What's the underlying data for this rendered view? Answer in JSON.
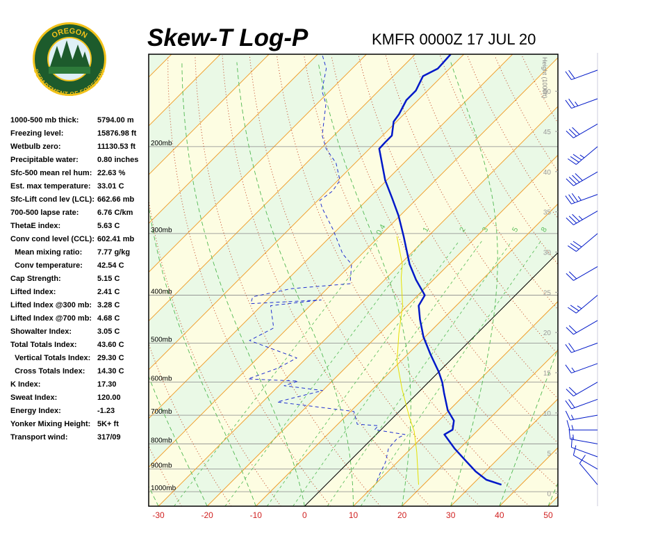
{
  "logo": {
    "top": "OREGON",
    "bottom": "DEPARTMENT OF FORESTRY"
  },
  "stats": [
    [
      "1000-500 mb thick:",
      "5794.00 m"
    ],
    [
      "Freezing level:",
      "15876.98 ft"
    ],
    [
      "Wetbulb zero:",
      "11130.53 ft"
    ],
    [
      "Precipitable water:",
      "0.80 inches"
    ],
    [
      "Sfc-500 mean rel hum:",
      "22.63 %"
    ],
    [
      "Est. max temperature:",
      "33.01 C"
    ],
    [
      "Sfc-Lift cond lev (LCL):",
      "662.66 mb"
    ],
    [
      "700-500 lapse rate:",
      "6.76 C/km"
    ],
    [
      "ThetaE index:",
      "5.63 C"
    ],
    [
      "Conv cond level (CCL):",
      "602.41 mb"
    ],
    [
      "  Mean mixing ratio:",
      "7.77 g/kg"
    ],
    [
      "  Conv temperature:",
      "42.54 C"
    ],
    [
      "Cap Strength:",
      "5.15 C"
    ],
    [
      "Lifted Index:",
      "2.41 C"
    ],
    [
      "Lifted Index @300 mb:",
      "3.28 C"
    ],
    [
      "Lifted Index @700 mb:",
      "4.68 C"
    ],
    [
      "Showalter Index:",
      "3.05 C"
    ],
    [
      "Total Totals Index:",
      "43.60 C"
    ],
    [
      "  Vertical Totals Index:",
      "29.30 C"
    ],
    [
      "  Cross Totals Index:",
      "14.30 C"
    ],
    [
      "K Index:",
      "17.30"
    ],
    [
      "Sweat Index:",
      "120.00"
    ],
    [
      "Energy Index:",
      "-1.23"
    ],
    [
      "Yonker Mixing Height:",
      "5K+ ft"
    ],
    [
      "Transport wind:",
      "317/09"
    ]
  ],
  "chart_data": {
    "type": "skew-t",
    "title": "Skew-T Log-P",
    "subtitle": "KMFR 0000Z 17 JUL 20",
    "y2_label": "Height (1000ft)",
    "xlim": [
      -32,
      52
    ],
    "xticks": [
      -30,
      -20,
      -10,
      0,
      10,
      20,
      30,
      40,
      50
    ],
    "ylim": [
      1070,
      130
    ],
    "log_y": true,
    "yticks": [
      {
        "value": 200,
        "label": "200mb"
      },
      {
        "value": 300,
        "label": "300mb"
      },
      {
        "value": 400,
        "label": "400mb"
      },
      {
        "value": 500,
        "label": "500mb"
      },
      {
        "value": 600,
        "label": "600mb"
      },
      {
        "value": 700,
        "label": "700mb"
      },
      {
        "value": 800,
        "label": "800mb"
      },
      {
        "value": 900,
        "label": "900mb"
      },
      {
        "value": 1000,
        "label": "1000mb"
      }
    ],
    "y2lim": [
      -1.6,
      54.6
    ],
    "y2ticks": [
      0,
      5,
      10,
      15,
      20,
      25,
      30,
      35,
      40,
      45,
      50
    ],
    "mixing_ratio": [
      0.4,
      1,
      2,
      3,
      5,
      8
    ],
    "series": [
      {
        "color": "#0018c8",
        "width": 2.5,
        "dash": false,
        "pressure": [
          968,
          946,
          910,
          864,
          818,
          766,
          749,
          718,
          684,
          631,
          601,
          572,
          527,
          486,
          448,
          420,
          400,
          372,
          346,
          304,
          276,
          254,
          234,
          202,
          196,
          190,
          178,
          172,
          161,
          154,
          144,
          139,
          130
        ],
        "values": [
          36.0,
          31.9,
          28.0,
          23.6,
          19.0,
          14.0,
          14.7,
          13.1,
          9.7,
          5.4,
          2.9,
          0.0,
          -5.3,
          -10.3,
          -14.6,
          -17.7,
          -18.6,
          -23.6,
          -28.1,
          -35.0,
          -40.3,
          -45.3,
          -50.3,
          -58.0,
          -58.1,
          -58.1,
          -60.6,
          -61.0,
          -62.4,
          -62.4,
          -63.9,
          -62.4,
          -62.7
        ]
      },
      {
        "color": "#2030d0",
        "width": 1,
        "dash": true,
        "pressure": [
          952,
          916,
          872,
          818,
          779,
          766,
          749,
          735,
          730,
          688,
          658,
          624,
          610,
          597,
          591,
          563,
          536,
          494,
          466,
          420,
          409,
          416,
          403,
          388,
          379,
          346,
          330,
          294,
          267,
          257,
          246,
          234,
          216,
          202,
          190,
          164,
          154,
          139,
          130
        ],
        "values": [
          9.7,
          8.7,
          7.6,
          5.4,
          5.1,
          5.9,
          -1.3,
          -1.4,
          -6.0,
          -9.3,
          -27.0,
          -20.0,
          -28.9,
          -27.0,
          -37.7,
          -33.9,
          -32.0,
          -45.3,
          -42.9,
          -48.1,
          -38.9,
          -52.6,
          -53.6,
          -47.4,
          -36.3,
          -40.0,
          -43.9,
          -51.0,
          -57.4,
          -59.6,
          -58.9,
          -59.6,
          -63.9,
          -68.9,
          -72.4,
          -78.1,
          -81.7,
          -85.3,
          -89.1
        ]
      },
      {
        "color": "#e6e000",
        "width": 1,
        "dash": false,
        "pressure": [
          968,
          831,
          754,
          707,
          621,
          545,
          479,
          420,
          369,
          346,
          304
        ],
        "values": [
          19.0,
          11.9,
          7.1,
          3.3,
          -3.9,
          -10.7,
          -16.0,
          -21.0,
          -27.0,
          -29.6,
          -36.4
        ]
      }
    ],
    "winds": {
      "pressure": [
        968,
        900,
        850,
        800,
        750,
        700,
        650,
        600,
        550,
        500,
        450,
        400,
        350,
        300,
        270,
        250,
        225,
        200,
        180,
        160,
        140
      ],
      "direction": [
        320,
        300,
        290,
        280,
        270,
        260,
        250,
        240,
        250,
        250,
        240,
        230,
        240,
        230,
        240,
        250,
        240,
        230,
        240,
        250,
        250
      ],
      "speed": [
        10,
        10,
        10,
        15,
        15,
        15,
        20,
        20,
        15,
        20,
        20,
        25,
        20,
        30,
        35,
        35,
        40,
        35,
        30,
        25,
        20
      ]
    }
  }
}
